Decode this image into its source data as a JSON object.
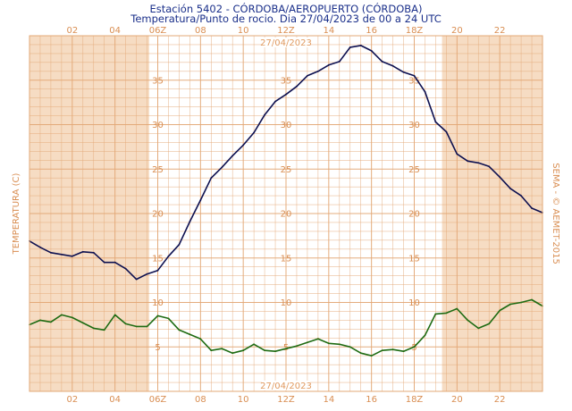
{
  "header": {
    "station": "Estación 5402 - CÓRDOBA/AEROPUERTO (CÓRDOBA)",
    "subtitle": "Temperatura/Punto de rocio. Dia 27/04/2023 de 00 a 24 UTC"
  },
  "colors": {
    "night": "#f6dcc3",
    "grid": "#e3a877",
    "labels": "#d98e52",
    "temperature": "#0d1050",
    "dewpoint": "#1e6b12"
  },
  "chart_data": {
    "type": "line",
    "title": "Estación 5402 - CÓRDOBA/AEROPUERTO (CÓRDOBA)",
    "subtitle": "Temperatura/Punto de rocio. Dia 27/04/2023 de 00 a 24 UTC",
    "ylabel": "TEMPERATURA (C)",
    "credit": "SEMA - © AEMET-2015",
    "date_label": "27/04/2023",
    "xlim": [
      0,
      24
    ],
    "ylim": [
      0,
      40
    ],
    "grid": true,
    "night_shading": [
      [
        0,
        5.6
      ],
      [
        19.3,
        24
      ]
    ],
    "x_ticks": [
      {
        "x": 2,
        "label": "02"
      },
      {
        "x": 4,
        "label": "04"
      },
      {
        "x": 6,
        "label": "06Z"
      },
      {
        "x": 8,
        "label": "08"
      },
      {
        "x": 10,
        "label": "10"
      },
      {
        "x": 12,
        "label": "12Z"
      },
      {
        "x": 14,
        "label": "14"
      },
      {
        "x": 16,
        "label": "16"
      },
      {
        "x": 18,
        "label": "18Z"
      },
      {
        "x": 20,
        "label": "20"
      },
      {
        "x": 22,
        "label": "22"
      }
    ],
    "y_ticks": [
      5,
      10,
      15,
      20,
      25,
      30,
      35
    ],
    "series": [
      {
        "key": "temperature",
        "x": [
          0,
          0.5,
          1,
          1.5,
          2,
          2.5,
          3,
          3.5,
          4,
          4.5,
          5,
          5.5,
          6,
          6.5,
          7,
          7.5,
          8,
          8.5,
          9,
          9.5,
          10,
          10.5,
          11,
          11.5,
          12,
          12.5,
          13,
          13.5,
          14,
          14.5,
          15,
          15.5,
          16,
          16.5,
          17,
          17.5,
          18,
          18.5,
          19,
          19.5,
          20,
          20.5,
          21,
          21.5,
          22,
          22.5,
          23,
          23.5,
          24
        ],
        "values": [
          16.9,
          16.2,
          15.6,
          15.4,
          15.2,
          15.7,
          15.6,
          14.5,
          14.5,
          13.8,
          12.6,
          13.2,
          13.6,
          15.2,
          16.5,
          19.1,
          21.5,
          24.0,
          25.2,
          26.5,
          27.7,
          29.1,
          31.1,
          32.6,
          33.4,
          34.3,
          35.5,
          36.0,
          36.7,
          37.1,
          38.7,
          38.9,
          38.3,
          37.1,
          36.6,
          35.9,
          35.5,
          33.7,
          30.3,
          29.2,
          26.7,
          25.9,
          25.7,
          25.3,
          24.1,
          22.8,
          22.0,
          20.6,
          20.1
        ]
      },
      {
        "key": "dewpoint",
        "x": [
          0,
          0.5,
          1,
          1.5,
          2,
          2.5,
          3,
          3.5,
          4,
          4.5,
          5,
          5.5,
          6,
          6.5,
          7,
          7.5,
          8,
          8.5,
          9,
          9.5,
          10,
          10.5,
          11,
          11.5,
          12,
          12.5,
          13,
          13.5,
          14,
          14.5,
          15,
          15.5,
          16,
          16.5,
          17,
          17.5,
          18,
          18.5,
          19,
          19.5,
          20,
          20.5,
          21,
          21.5,
          22,
          22.5,
          23,
          23.5,
          24
        ],
        "values": [
          7.5,
          8.0,
          7.8,
          8.6,
          8.3,
          7.7,
          7.1,
          6.9,
          8.6,
          7.6,
          7.3,
          7.3,
          8.5,
          8.2,
          6.9,
          6.4,
          5.9,
          4.6,
          4.8,
          4.3,
          4.6,
          5.3,
          4.6,
          4.5,
          4.8,
          5.1,
          5.5,
          5.9,
          5.4,
          5.3,
          5.0,
          4.3,
          4.0,
          4.6,
          4.7,
          4.5,
          5.0,
          6.3,
          8.7,
          8.8,
          9.3,
          8.0,
          7.1,
          7.6,
          9.1,
          9.8,
          10.0,
          10.3,
          9.6
        ]
      }
    ]
  }
}
